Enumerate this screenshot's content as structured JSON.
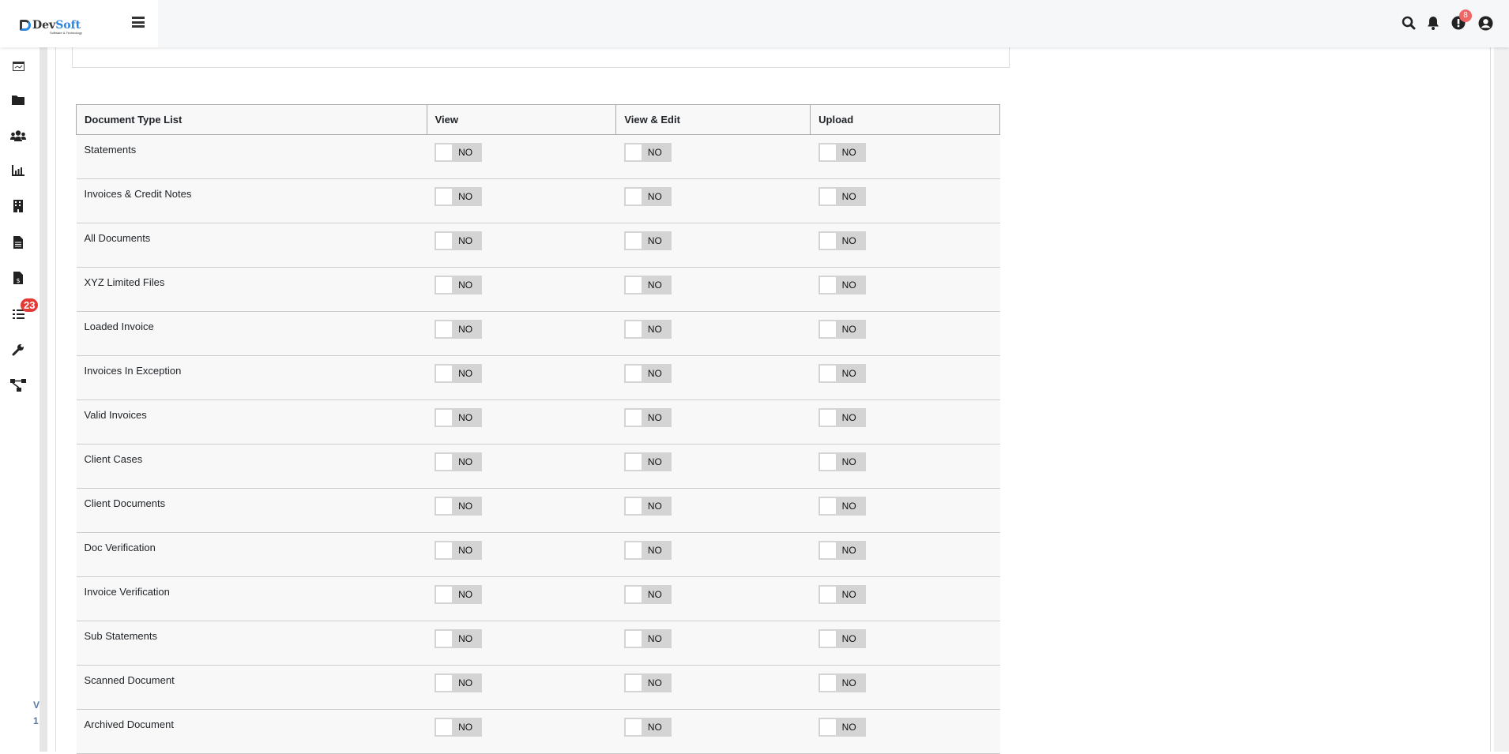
{
  "header": {
    "logo_text_1": "Dev",
    "logo_text_2": "Soft",
    "logo_sub": "Software & Technology",
    "notification_count": "8"
  },
  "sidebar": {
    "items": [
      {
        "icon": "dashboard-icon"
      },
      {
        "icon": "folder-icon"
      },
      {
        "icon": "users-icon"
      },
      {
        "icon": "chart-icon"
      },
      {
        "icon": "building-icon"
      },
      {
        "icon": "document-icon"
      },
      {
        "icon": "invoice-icon"
      },
      {
        "icon": "task-list-icon",
        "badge": "23"
      },
      {
        "icon": "wrench-icon"
      },
      {
        "icon": "workflow-icon"
      }
    ],
    "version_1": "V",
    "version_2": "1"
  },
  "table": {
    "columns": [
      "Document Type List",
      "View",
      "View & Edit",
      "Upload"
    ],
    "rows": [
      {
        "name": "Statements",
        "view": "NO",
        "edit": "NO",
        "upload": "NO"
      },
      {
        "name": "Invoices & Credit Notes",
        "view": "NO",
        "edit": "NO",
        "upload": "NO"
      },
      {
        "name": "All Documents",
        "view": "NO",
        "edit": "NO",
        "upload": "NO"
      },
      {
        "name": "XYZ Limited Files",
        "view": "NO",
        "edit": "NO",
        "upload": "NO"
      },
      {
        "name": "Loaded Invoice",
        "view": "NO",
        "edit": "NO",
        "upload": "NO"
      },
      {
        "name": "Invoices In Exception",
        "view": "NO",
        "edit": "NO",
        "upload": "NO"
      },
      {
        "name": "Valid Invoices",
        "view": "NO",
        "edit": "NO",
        "upload": "NO"
      },
      {
        "name": "Client Cases",
        "view": "NO",
        "edit": "NO",
        "upload": "NO"
      },
      {
        "name": "Client Documents",
        "view": "NO",
        "edit": "NO",
        "upload": "NO"
      },
      {
        "name": "Doc Verification",
        "view": "NO",
        "edit": "NO",
        "upload": "NO"
      },
      {
        "name": "Invoice Verification",
        "view": "NO",
        "edit": "NO",
        "upload": "NO"
      },
      {
        "name": "Sub Statements",
        "view": "NO",
        "edit": "NO",
        "upload": "NO"
      },
      {
        "name": "Scanned Document",
        "view": "NO",
        "edit": "NO",
        "upload": "NO"
      },
      {
        "name": "Archived Document",
        "view": "NO",
        "edit": "NO",
        "upload": "NO"
      }
    ]
  }
}
